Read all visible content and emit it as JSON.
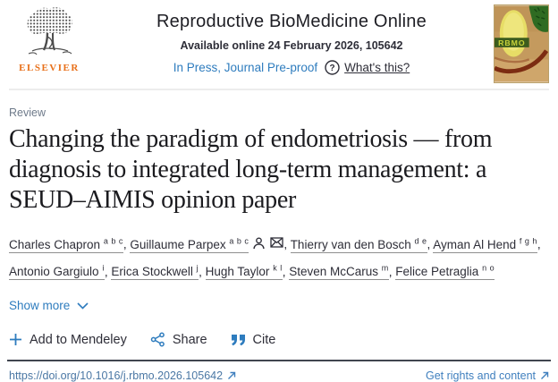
{
  "header": {
    "publisher": "ELSEVIER",
    "journal_title": "Reproductive BioMedicine Online",
    "availability": "Available online 24 February 2026, 105642",
    "in_press_label": "In Press, Journal Pre-proof",
    "whats_this_label": "What's this?",
    "cover_label": "RBMO"
  },
  "article": {
    "category": "Review",
    "title": "Changing the paradigm of endometriosis — from diagnosis to integrated long-term management: a SEUD–AIMIS opinion paper",
    "authors": [
      {
        "name": "Charles Chapron",
        "affiliations": "a b c",
        "person_icon": false,
        "email_icon": false
      },
      {
        "name": "Guillaume Parpex",
        "affiliations": "a b c",
        "person_icon": true,
        "email_icon": true
      },
      {
        "name": "Thierry van den Bosch",
        "affiliations": "d e",
        "person_icon": false,
        "email_icon": false
      },
      {
        "name": "Ayman Al Hend",
        "affiliations": "f g h",
        "person_icon": false,
        "email_icon": false
      },
      {
        "name": "Antonio Gargiulo",
        "affiliations": "i",
        "person_icon": false,
        "email_icon": false
      },
      {
        "name": "Erica Stockwell",
        "affiliations": "j",
        "person_icon": false,
        "email_icon": false
      },
      {
        "name": "Hugh Taylor",
        "affiliations": "k l",
        "person_icon": false,
        "email_icon": false
      },
      {
        "name": "Steven McCarus",
        "affiliations": "m",
        "person_icon": false,
        "email_icon": false
      },
      {
        "name": "Felice Petraglia",
        "affiliations": "n o",
        "person_icon": false,
        "email_icon": false
      }
    ],
    "show_more_label": "Show more"
  },
  "actions": {
    "mendeley_label": "Add to Mendeley",
    "share_label": "Share",
    "cite_label": "Cite"
  },
  "footer": {
    "doi": "https://doi.org/10.1016/j.rbmo.2026.105642",
    "rights_label": "Get rights and content"
  },
  "colors": {
    "link_blue": "#2e7cbe",
    "elsevier_orange": "#e8701a",
    "text_dark": "#2e2e38",
    "doi_blue": "#4a77a4"
  }
}
